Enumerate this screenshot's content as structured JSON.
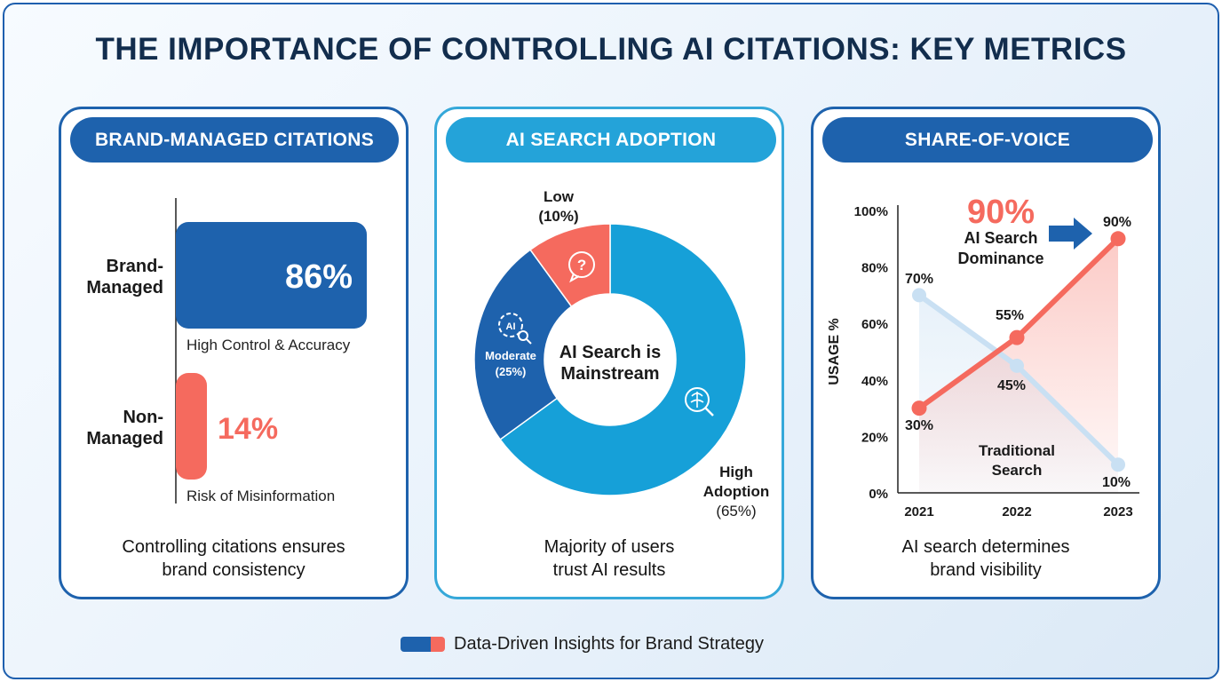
{
  "title": "THE IMPORTANCE OF CONTROLLING AI CITATIONS: KEY METRICS",
  "footer": "Data-Driven Insights for Brand Strategy",
  "colors": {
    "navy": "#1e62ad",
    "sky": "#16a0d8",
    "coral": "#f56a5e",
    "light_blue": "#cfe3f4"
  },
  "panel1": {
    "header": "BRAND-MANAGED CITATIONS",
    "bars": [
      {
        "label_line1": "Brand-",
        "label_line2": "Managed",
        "value_text": "86%",
        "note": "High Control & Accuracy"
      },
      {
        "label_line1": "Non-",
        "label_line2": "Managed",
        "value_text": "14%",
        "note": "Risk of Misinformation"
      }
    ],
    "caption_line1": "Controlling citations ensures",
    "caption_line2": "brand consistency"
  },
  "panel2": {
    "header": "AI SEARCH ADOPTION",
    "center_line1": "AI Search is",
    "center_line2": "Mainstream",
    "labels": {
      "low_1": "Low",
      "low_2": "(10%)",
      "mod_1": "Moderate",
      "mod_2": "(25%)",
      "high_1": "High",
      "high_2": "Adoption",
      "high_3": "(65%)"
    },
    "icons": {
      "low": "question-bubble-icon",
      "moderate": "ai-gear-magnifier-icon",
      "high": "brain-magnifier-icon"
    },
    "caption_line1": "Majority of users",
    "caption_line2": "trust AI results"
  },
  "panel3": {
    "header": "SHARE-OF-VOICE",
    "big_value": "90%",
    "callout_line1": "AI Search",
    "callout_line2": "Dominance",
    "series_label_line1": "Traditional",
    "series_label_line2": "Search",
    "caption_line1": "AI search determines",
    "caption_line2": "brand visibility"
  },
  "chart_data": [
    {
      "type": "bar",
      "categories": [
        "Brand-Managed",
        "Non-Managed"
      ],
      "values": [
        86,
        14
      ],
      "unit": "%",
      "orientation": "horizontal"
    },
    {
      "type": "pie",
      "variant": "donut",
      "categories": [
        "High Adoption",
        "Moderate",
        "Low"
      ],
      "values": [
        65,
        25,
        10
      ],
      "colors": [
        "#16a0d8",
        "#1e62ad",
        "#f56a5e"
      ]
    },
    {
      "type": "line",
      "x": [
        "2021",
        "2022",
        "2023"
      ],
      "series": [
        {
          "name": "AI Search",
          "values": [
            30,
            55,
            90
          ],
          "color": "#f56a5e"
        },
        {
          "name": "Traditional Search",
          "values": [
            70,
            45,
            10
          ],
          "color": "#cfe3f4"
        }
      ],
      "ylabel": "USAGE %",
      "ylim": [
        0,
        100
      ],
      "yticks": [
        "0%",
        "20%",
        "40%",
        "60%",
        "80%",
        "100%"
      ]
    }
  ]
}
